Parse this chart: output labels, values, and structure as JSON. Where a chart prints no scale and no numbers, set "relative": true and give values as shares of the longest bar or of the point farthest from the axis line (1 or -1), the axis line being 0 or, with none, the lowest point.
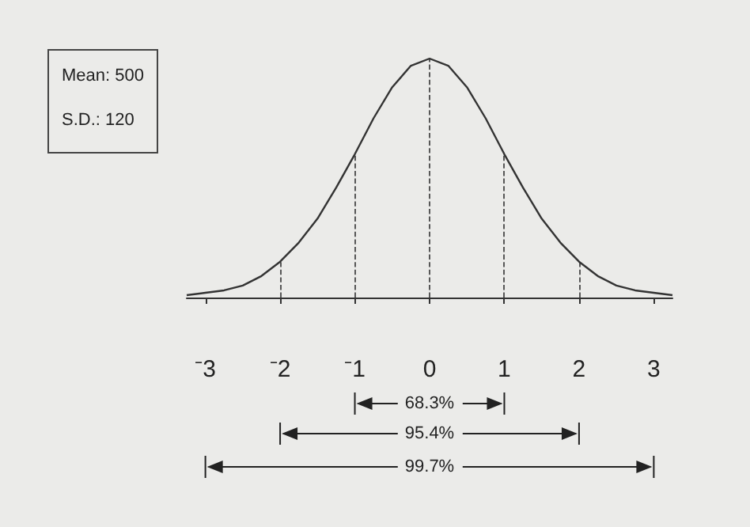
{
  "chart_data": {
    "type": "line",
    "relative": true,
    "marker": "none",
    "x": [
      -3.25,
      -3,
      -2.75,
      -2.5,
      -2.25,
      -2,
      -1.75,
      -1.5,
      -1.25,
      -1,
      -0.75,
      -0.5,
      -0.25,
      0,
      0.25,
      0.5,
      0.75,
      1,
      1.25,
      1.5,
      1.75,
      2,
      2.25,
      2.5,
      2.75,
      3,
      3.25
    ],
    "series": [
      {
        "color": "#333333",
        "values": [
          0.01,
          0.02,
          0.03,
          0.05,
          0.09,
          0.15,
          0.23,
          0.33,
          0.46,
          0.6,
          0.75,
          0.88,
          0.97,
          1,
          0.97,
          0.88,
          0.75,
          0.6,
          0.46,
          0.33,
          0.23,
          0.15,
          0.09,
          0.05,
          0.03,
          0.02,
          0.01
        ]
      }
    ],
    "xlim": [
      -3.25,
      3.25
    ],
    "xticks": [
      {
        "value": -3,
        "label": "⁻3"
      },
      {
        "value": -2,
        "label": "⁻2"
      },
      {
        "value": -1,
        "label": "⁻1"
      },
      0,
      1,
      2,
      3
    ],
    "ref_lines": [
      {
        "axis": "x",
        "value": -2,
        "line_style": "dashed"
      },
      {
        "axis": "x",
        "value": -1,
        "line_style": "dashed"
      },
      {
        "axis": "x",
        "value": 0,
        "line_style": "dashed"
      },
      {
        "axis": "x",
        "value": 1,
        "line_style": "dashed"
      },
      {
        "axis": "x",
        "value": 2,
        "line_style": "dashed"
      }
    ],
    "annotations": [
      "Mean: 500",
      "S.D.: 120",
      "68.3%",
      "95.4%",
      "99.7%"
    ]
  }
}
